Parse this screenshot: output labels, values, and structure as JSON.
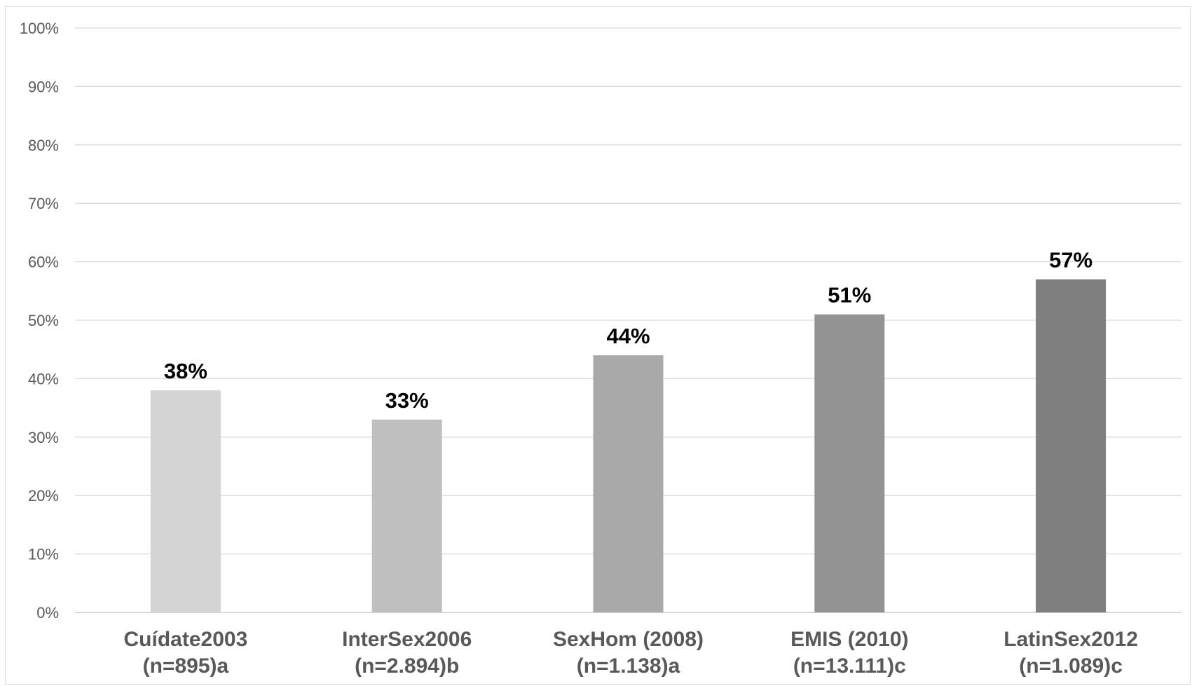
{
  "chart_data": {
    "type": "bar",
    "categories": [
      [
        "Cuídate2003",
        "(n=895)a"
      ],
      [
        "InterSex2006",
        "(n=2.894)b"
      ],
      [
        "SexHom (2008)",
        "(n=1.138)a"
      ],
      [
        "EMIS (2010)",
        "(n=13.111)c"
      ],
      [
        "LatinSex2012",
        "(n=1.089)c"
      ]
    ],
    "values": [
      38,
      33,
      44,
      51,
      57
    ],
    "data_labels": [
      "38%",
      "33%",
      "44%",
      "51%",
      "57%"
    ],
    "bar_colors": [
      "#d4d4d4",
      "#bfbfbf",
      "#a9a9a9",
      "#939393",
      "#7f7f7f"
    ],
    "ylim": [
      0,
      100
    ],
    "yticks": [
      0,
      10,
      20,
      30,
      40,
      50,
      60,
      70,
      80,
      90,
      100
    ],
    "ytick_labels": [
      "0%",
      "10%",
      "20%",
      "30%",
      "40%",
      "50%",
      "60%",
      "70%",
      "80%",
      "90%",
      "100%"
    ],
    "grid": true,
    "legend": "none",
    "title": "",
    "xlabel": "",
    "ylabel": ""
  }
}
